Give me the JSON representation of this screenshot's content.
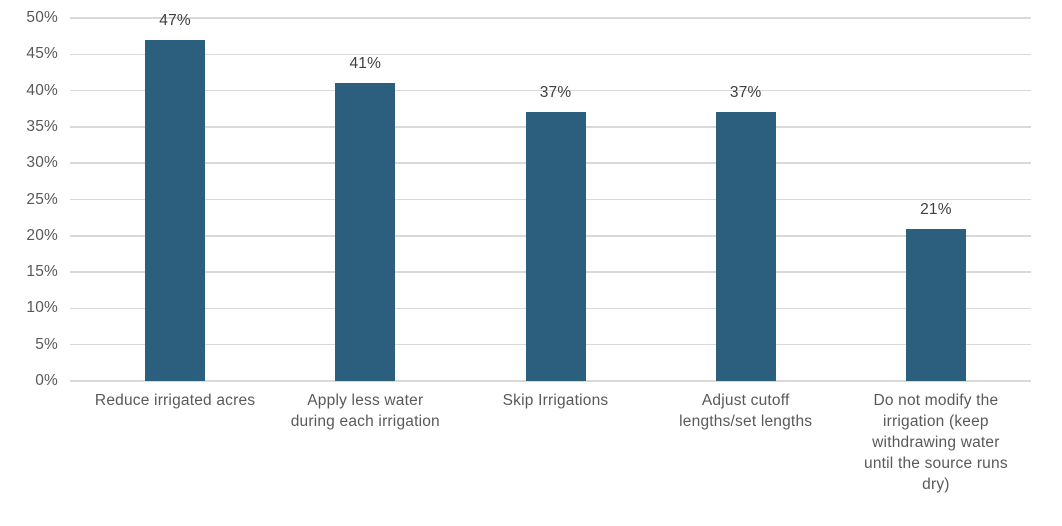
{
  "chart_data": {
    "type": "bar",
    "title": "",
    "xlabel": "",
    "ylabel": "",
    "categories": [
      "Reduce irrigated acres",
      "Apply less water during each irrigation",
      "Skip Irrigations",
      "Adjust cutoff lengths/set lengths",
      "Do not modify the irrigation (keep withdrawing water until the source runs dry)"
    ],
    "category_label_lines": [
      [
        "Reduce irrigated acres"
      ],
      [
        "Apply less water",
        "during each irrigation"
      ],
      [
        "Skip Irrigations"
      ],
      [
        "Adjust cutoff",
        "lengths/set lengths"
      ],
      [
        "Do not modify the",
        "irrigation (keep",
        "withdrawing water",
        "until the source runs",
        "dry)"
      ]
    ],
    "values": [
      47,
      41,
      37,
      37,
      21
    ],
    "data_labels": [
      "47%",
      "41%",
      "37%",
      "37%",
      "21%"
    ],
    "ylim": [
      0,
      50
    ],
    "ytick_step": 5,
    "ytick_labels": [
      "0%",
      "5%",
      "10%",
      "15%",
      "20%",
      "25%",
      "30%",
      "35%",
      "40%",
      "45%",
      "50%"
    ],
    "grid": true,
    "legend_position": "none",
    "colors": {
      "bar": "#2C5F7E",
      "gridline": "#D9D9D9",
      "axis_line": "#D9D9D9",
      "tick_label": "#595959",
      "data_label": "#404040",
      "category_label": "#595959",
      "background": "#FFFFFF"
    }
  }
}
